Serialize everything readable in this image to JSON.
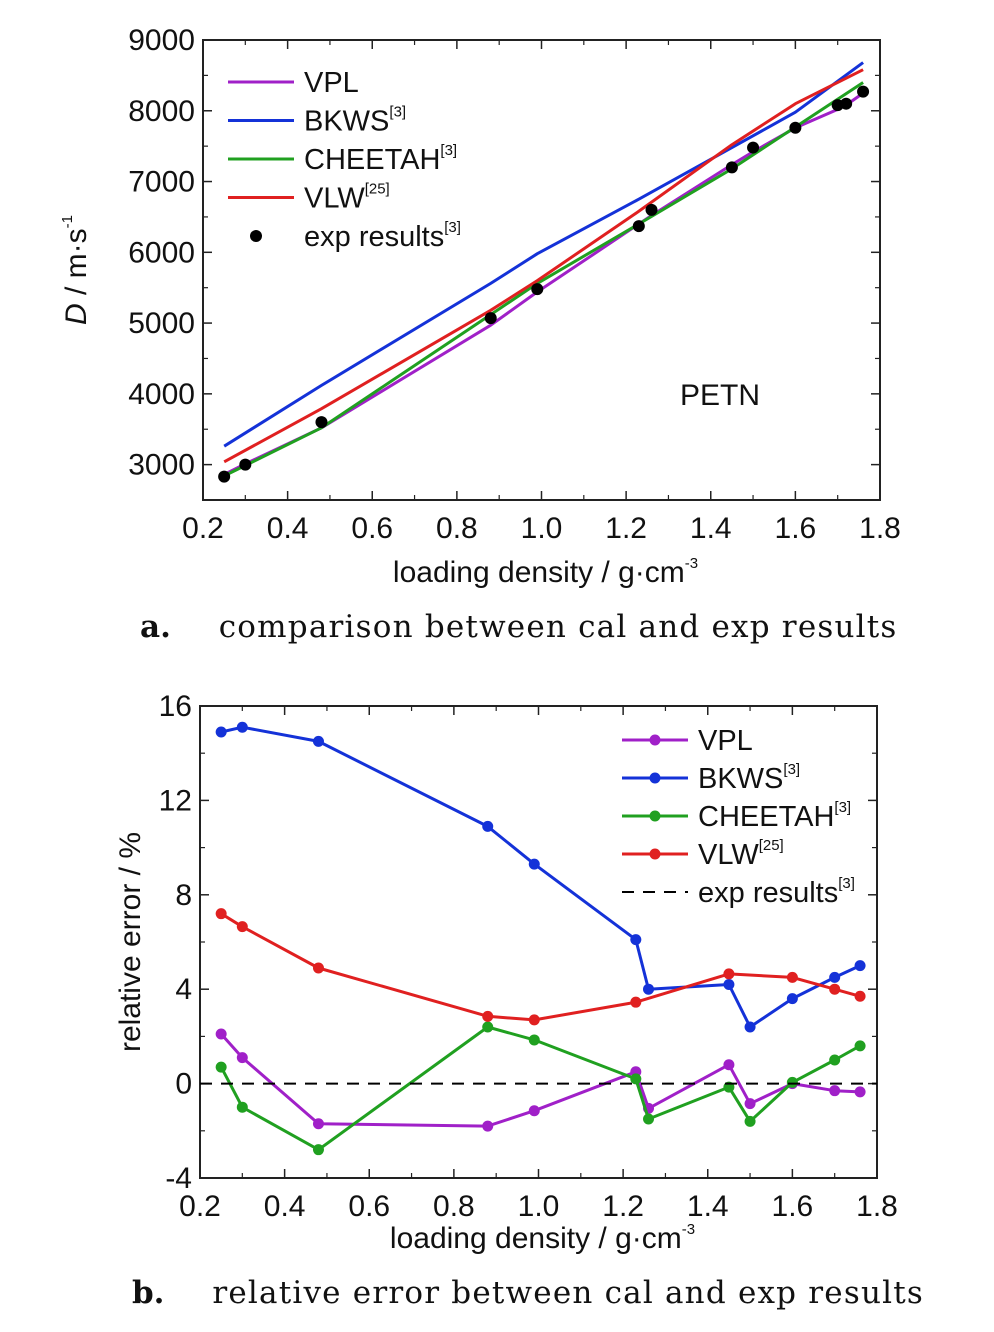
{
  "captions": [
    {
      "letter": "a.",
      "text": "comparison between cal and exp results"
    },
    {
      "letter": "b.",
      "text": "relative error between cal and exp results"
    }
  ],
  "chart_data": [
    {
      "type": "line",
      "xlabel": "loading density / g·cm",
      "xlabel_sup": "-3",
      "ylabel_italic": "D",
      "ylabel": " / m·s",
      "ylabel_sup": "-1",
      "xlim": [
        0.2,
        1.8
      ],
      "ylim": [
        2500,
        9000
      ],
      "xticks": [
        0.2,
        0.4,
        0.6,
        0.8,
        1.0,
        1.2,
        1.4,
        1.6,
        1.8
      ],
      "xtick_labels": [
        "0.2",
        "0.4",
        "0.6",
        "0.8",
        "1.0",
        "1.2",
        "1.4",
        "1.6",
        "1.8"
      ],
      "yticks": [
        3000,
        4000,
        5000,
        6000,
        7000,
        8000,
        9000
      ],
      "ytick_labels": [
        "3000",
        "4000",
        "5000",
        "6000",
        "7000",
        "8000",
        "9000"
      ],
      "annotation": "PETN",
      "legend_position": "top-left",
      "series": [
        {
          "name": "VPL",
          "sup": "",
          "color": "#a020c8",
          "kind": "line",
          "x": [
            0.25,
            0.3,
            0.48,
            0.88,
            0.99,
            1.23,
            1.26,
            1.45,
            1.5,
            1.6,
            1.7,
            1.72,
            1.76
          ],
          "y": [
            2860,
            3010,
            3520,
            4970,
            5440,
            6400,
            6520,
            7240,
            7420,
            7760,
            8020,
            8080,
            8250
          ]
        },
        {
          "name": "BKWS",
          "sup": "[3]",
          "color": "#1432d8",
          "kind": "line",
          "x": [
            0.25,
            0.48,
            0.88,
            0.99,
            1.23,
            1.45,
            1.6,
            1.76
          ],
          "y": [
            3260,
            4120,
            5560,
            5980,
            6750,
            7480,
            7980,
            8680
          ]
        },
        {
          "name": "CHEETAH",
          "sup": "[3]",
          "color": "#20a020",
          "kind": "line",
          "x": [
            0.25,
            0.48,
            0.88,
            0.99,
            1.23,
            1.45,
            1.6,
            1.76
          ],
          "y": [
            2840,
            3520,
            5120,
            5560,
            6400,
            7180,
            7770,
            8400
          ]
        },
        {
          "name": "VLW",
          "sup": "[25]",
          "color": "#e02020",
          "kind": "line",
          "x": [
            0.25,
            0.48,
            0.88,
            0.99,
            1.23,
            1.45,
            1.6,
            1.76
          ],
          "y": [
            3040,
            3790,
            5180,
            5600,
            6580,
            7520,
            8100,
            8580
          ]
        },
        {
          "name": "exp results",
          "sup": "[3]",
          "color": "#000000",
          "kind": "points",
          "x": [
            0.25,
            0.3,
            0.48,
            0.88,
            0.99,
            1.23,
            1.26,
            1.45,
            1.5,
            1.6,
            1.7,
            1.72,
            1.76
          ],
          "y": [
            2830,
            3000,
            3600,
            5070,
            5480,
            6370,
            6600,
            7200,
            7480,
            7760,
            8080,
            8100,
            8270
          ]
        }
      ]
    },
    {
      "type": "line",
      "xlabel": "loading density / g·cm",
      "xlabel_sup": "-3",
      "ylabel": "relative error / %",
      "xlim": [
        0.2,
        1.8
      ],
      "ylim": [
        -4,
        16
      ],
      "xticks": [
        0.2,
        0.4,
        0.6,
        0.8,
        1.0,
        1.2,
        1.4,
        1.6,
        1.8
      ],
      "xtick_labels": [
        "0.2",
        "0.4",
        "0.6",
        "0.8",
        "1.0",
        "1.2",
        "1.4",
        "1.6",
        "1.8"
      ],
      "yticks": [
        -4,
        0,
        4,
        8,
        12,
        16
      ],
      "ytick_labels": [
        "-4",
        "0",
        "4",
        "8",
        "12",
        "16"
      ],
      "legend_position": "top-right",
      "series": [
        {
          "name": "VPL",
          "sup": "",
          "color": "#a020c8",
          "kind": "line-markers",
          "x": [
            0.25,
            0.3,
            0.48,
            0.88,
            0.99,
            1.23,
            1.26,
            1.45,
            1.5,
            1.6,
            1.7,
            1.76
          ],
          "y": [
            2.1,
            1.1,
            -1.7,
            -1.8,
            -1.15,
            0.5,
            -1.05,
            0.8,
            -0.85,
            0.0,
            -0.3,
            -0.35
          ]
        },
        {
          "name": "BKWS",
          "sup": "[3]",
          "color": "#1432d8",
          "kind": "line-markers",
          "x": [
            0.25,
            0.3,
            0.48,
            0.88,
            0.99,
            1.23,
            1.26,
            1.45,
            1.5,
            1.6,
            1.7,
            1.76
          ],
          "y": [
            14.9,
            15.1,
            14.5,
            10.9,
            9.3,
            6.1,
            4.0,
            4.2,
            2.4,
            3.6,
            4.5,
            5.0
          ]
        },
        {
          "name": "CHEETAH",
          "sup": "[3]",
          "color": "#20a020",
          "kind": "line-markers",
          "x": [
            0.25,
            0.3,
            0.48,
            0.88,
            0.99,
            1.23,
            1.26,
            1.45,
            1.5,
            1.6,
            1.7,
            1.76
          ],
          "y": [
            0.7,
            -1.0,
            -2.8,
            2.4,
            1.85,
            0.2,
            -1.5,
            -0.15,
            -1.6,
            0.05,
            1.0,
            1.6
          ]
        },
        {
          "name": "VLW",
          "sup": "[25]",
          "color": "#e02020",
          "kind": "line-markers",
          "x": [
            0.25,
            0.3,
            0.48,
            0.88,
            0.99,
            1.23,
            1.45,
            1.6,
            1.7,
            1.76
          ],
          "y": [
            7.2,
            6.65,
            4.9,
            2.85,
            2.7,
            3.45,
            4.65,
            4.5,
            4.0,
            3.7
          ]
        },
        {
          "name": "exp results",
          "sup": "[3]",
          "color": "#000000",
          "kind": "dashed",
          "x": [
            0.2,
            1.8
          ],
          "y": [
            0,
            0
          ]
        }
      ]
    }
  ]
}
